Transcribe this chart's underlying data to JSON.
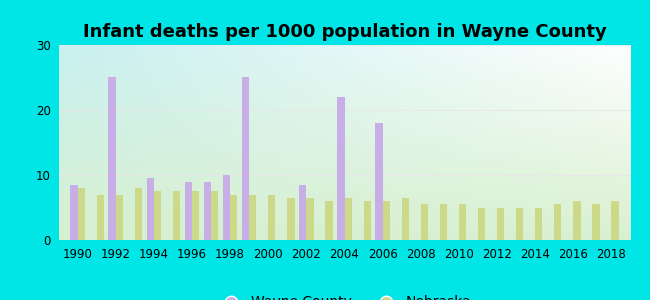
{
  "title": "Infant deaths per 1000 population in Wayne County",
  "years": [
    1990,
    1991,
    1992,
    1993,
    1994,
    1995,
    1996,
    1997,
    1998,
    1999,
    2000,
    2001,
    2002,
    2003,
    2004,
    2005,
    2006,
    2007,
    2008,
    2009,
    2010,
    2011,
    2012,
    2013,
    2014,
    2015,
    2016,
    2017,
    2018
  ],
  "wayne_county": [
    8.5,
    0,
    25,
    0,
    9.5,
    0,
    9,
    9,
    10,
    25,
    0,
    0,
    8.5,
    0,
    22,
    0,
    18,
    0,
    0,
    0,
    0,
    0,
    0,
    0,
    0,
    0,
    0,
    0,
    0
  ],
  "nebraska": [
    8.0,
    7.0,
    7.0,
    8.0,
    7.5,
    7.5,
    7.5,
    7.5,
    7.0,
    7.0,
    7.0,
    6.5,
    6.5,
    6.0,
    6.5,
    6.0,
    6.0,
    6.5,
    5.5,
    5.5,
    5.5,
    5.0,
    5.0,
    5.0,
    5.0,
    5.5,
    6.0,
    5.5,
    6.0
  ],
  "wayne_color": "#c8aee6",
  "nebraska_color": "#ccd988",
  "outer_bg": "#00e5e5",
  "plot_bg_tl": "#c8f0f0",
  "plot_bg_br": "#d8f0d0",
  "grid_color": "#e8e8e8",
  "ylim": [
    0,
    30
  ],
  "yticks": [
    0,
    10,
    20,
    30
  ],
  "bar_width": 0.38,
  "title_fontsize": 13,
  "tick_fontsize": 8.5,
  "legend_fontsize": 10,
  "xtick_years": [
    1990,
    1992,
    1994,
    1996,
    1998,
    2000,
    2002,
    2004,
    2006,
    2008,
    2010,
    2012,
    2014,
    2016,
    2018
  ]
}
